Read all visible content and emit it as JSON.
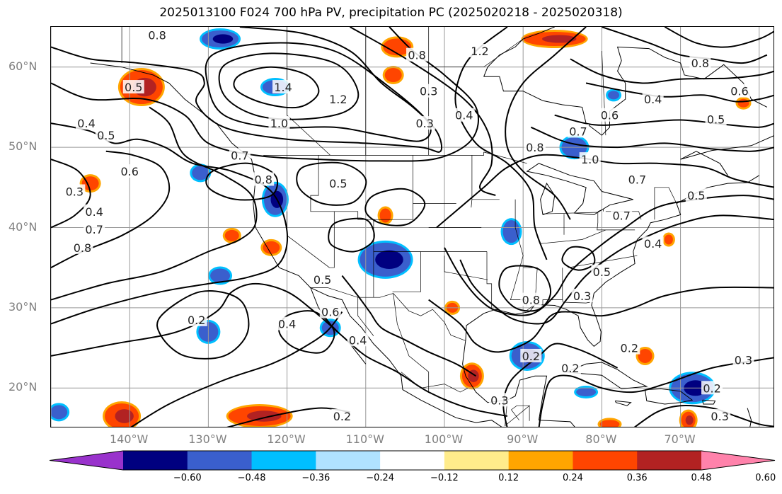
{
  "title": "2025013100 F024 700 hPa PV, precipitation PC (2025020218 - 2025020318)",
  "lat_labels": [
    {
      "text": "60°N",
      "lat": 60
    },
    {
      "text": "50°N",
      "lat": 50
    },
    {
      "text": "40°N",
      "lat": 40
    },
    {
      "text": "30°N",
      "lat": 30
    },
    {
      "text": "20°N",
      "lat": 20
    }
  ],
  "lon_labels": [
    {
      "text": "140°W",
      "lon": -140
    },
    {
      "text": "130°W",
      "lon": -130
    },
    {
      "text": "120°W",
      "lon": -120
    },
    {
      "text": "110°W",
      "lon": -110
    },
    {
      "text": "100°W",
      "lon": -100
    },
    {
      "text": "90°W",
      "lon": -90
    },
    {
      "text": "80°W",
      "lon": -80
    },
    {
      "text": "70°W",
      "lon": -70
    }
  ],
  "colorbar": {
    "tick_labels": [
      "−0.60",
      "−0.48",
      "−0.36",
      "−0.24",
      "−0.12",
      "0.12",
      "0.24",
      "0.36",
      "0.48",
      "0.60"
    ],
    "colors": [
      "#9932cc",
      "#000080",
      "#3a5fcd",
      "#00bfff",
      "#b0e2ff",
      "#ffffff",
      "#ffec8b",
      "#ffa500",
      "#ff4500",
      "#b22222",
      "#ff82ab"
    ]
  },
  "contour_labels": [
    {
      "text": "0.8",
      "lon": -136.5,
      "lat": 64.0
    },
    {
      "text": "0.5",
      "lon": -139.5,
      "lat": 57.5
    },
    {
      "text": "0.4",
      "lon": -145.5,
      "lat": 53.0
    },
    {
      "text": "0.5",
      "lon": -143.0,
      "lat": 51.5
    },
    {
      "text": "0.6",
      "lon": -140.0,
      "lat": 47.0
    },
    {
      "text": "0.3",
      "lon": -147.0,
      "lat": 44.5
    },
    {
      "text": "0.4",
      "lon": -144.5,
      "lat": 42.0
    },
    {
      "text": "0.7",
      "lon": -144.5,
      "lat": 39.8
    },
    {
      "text": "0.8",
      "lon": -146.0,
      "lat": 37.5
    },
    {
      "text": "0.7",
      "lon": -126.0,
      "lat": 49.0
    },
    {
      "text": "0.8",
      "lon": -123.0,
      "lat": 46.0
    },
    {
      "text": "1.4",
      "lon": -120.5,
      "lat": 57.5
    },
    {
      "text": "1.0",
      "lon": -121.0,
      "lat": 53.0
    },
    {
      "text": "1.2",
      "lon": -113.5,
      "lat": 56.0
    },
    {
      "text": "0.8",
      "lon": -103.5,
      "lat": 61.5
    },
    {
      "text": "1.2",
      "lon": -95.5,
      "lat": 62.0
    },
    {
      "text": "0.3",
      "lon": -102.0,
      "lat": 57.0
    },
    {
      "text": "0.4",
      "lon": -97.5,
      "lat": 54.0
    },
    {
      "text": "0.3",
      "lon": -102.5,
      "lat": 53.0
    },
    {
      "text": "0.5",
      "lon": -113.5,
      "lat": 45.5
    },
    {
      "text": "0.5",
      "lon": -115.5,
      "lat": 33.5
    },
    {
      "text": "0.6",
      "lon": -114.5,
      "lat": 29.5
    },
    {
      "text": "0.4",
      "lon": -120.0,
      "lat": 28.0
    },
    {
      "text": "0.4",
      "lon": -111.0,
      "lat": 26.0
    },
    {
      "text": "0.2",
      "lon": -131.5,
      "lat": 28.5
    },
    {
      "text": "0.2",
      "lon": -113.0,
      "lat": 16.5
    },
    {
      "text": "0.8",
      "lon": -88.5,
      "lat": 50.0
    },
    {
      "text": "0.7",
      "lon": -83.0,
      "lat": 52.0
    },
    {
      "text": "1.0",
      "lon": -81.5,
      "lat": 48.5
    },
    {
      "text": "0.6",
      "lon": -79.0,
      "lat": 54.0
    },
    {
      "text": "0.4",
      "lon": -73.5,
      "lat": 56.0
    },
    {
      "text": "0.5",
      "lon": -65.5,
      "lat": 53.5
    },
    {
      "text": "0.6",
      "lon": -62.5,
      "lat": 57.0
    },
    {
      "text": "0.8",
      "lon": -67.5,
      "lat": 60.5
    },
    {
      "text": "0.5",
      "lon": -68.0,
      "lat": 44.0
    },
    {
      "text": "0.7",
      "lon": -75.5,
      "lat": 46.0
    },
    {
      "text": "0.7",
      "lon": -77.5,
      "lat": 41.5
    },
    {
      "text": "0.4",
      "lon": -73.5,
      "lat": 38.0
    },
    {
      "text": "0.5",
      "lon": -80.0,
      "lat": 34.5
    },
    {
      "text": "0.3",
      "lon": -82.5,
      "lat": 31.5
    },
    {
      "text": "0.8",
      "lon": -89.0,
      "lat": 31.0
    },
    {
      "text": "0.2",
      "lon": -84.0,
      "lat": 22.5
    },
    {
      "text": "0.2",
      "lon": -89.0,
      "lat": 24.0
    },
    {
      "text": "0.3",
      "lon": -93.0,
      "lat": 18.5
    },
    {
      "text": "0.2",
      "lon": -76.5,
      "lat": 25.0
    },
    {
      "text": "0.3",
      "lon": -62.0,
      "lat": 23.5
    },
    {
      "text": "0.3",
      "lon": -65.0,
      "lat": 16.5
    },
    {
      "text": "0.2",
      "lon": -66.0,
      "lat": 20.0
    }
  ],
  "precip_anomalies": [
    {
      "lon": -138.5,
      "lat": 57.5,
      "rx": 30,
      "ry": 24,
      "color": "#ff4500",
      "core": "#b22222"
    },
    {
      "lon": -128.5,
      "lat": 63.5,
      "rx": 26,
      "ry": 12,
      "color": "#3a5fcd",
      "core": "#000080"
    },
    {
      "lon": -121.5,
      "lat": 57.5,
      "rx": 18,
      "ry": 10,
      "color": "#3a5fcd",
      "core": null
    },
    {
      "lon": -131.0,
      "lat": 46.8,
      "rx": 12,
      "ry": 10,
      "color": "#3a5fcd",
      "core": null
    },
    {
      "lon": -145.0,
      "lat": 45.5,
      "rx": 12,
      "ry": 10,
      "color": "#ff4500",
      "core": null
    },
    {
      "lon": -121.5,
      "lat": 43.5,
      "rx": 16,
      "ry": 22,
      "color": "#3a5fcd",
      "core": "#000080"
    },
    {
      "lon": -127.0,
      "lat": 39.0,
      "rx": 10,
      "ry": 8,
      "color": "#ff4500",
      "core": null
    },
    {
      "lon": -122.0,
      "lat": 37.5,
      "rx": 12,
      "ry": 9,
      "color": "#ff4500",
      "core": null
    },
    {
      "lon": -128.5,
      "lat": 34.0,
      "rx": 14,
      "ry": 10,
      "color": "#3a5fcd",
      "core": null
    },
    {
      "lon": -130.0,
      "lat": 27.0,
      "rx": 14,
      "ry": 14,
      "color": "#3a5fcd",
      "core": null
    },
    {
      "lon": -114.5,
      "lat": 27.5,
      "rx": 12,
      "ry": 10,
      "color": "#3a5fcd",
      "core": null
    },
    {
      "lon": -107.5,
      "lat": 36.0,
      "rx": 36,
      "ry": 24,
      "color": "#3a5fcd",
      "core": "#000080"
    },
    {
      "lon": -107.5,
      "lat": 41.5,
      "rx": 8,
      "ry": 10,
      "color": "#ff4500",
      "core": null
    },
    {
      "lon": -106.5,
      "lat": 59.0,
      "rx": 12,
      "ry": 10,
      "color": "#ff4500",
      "core": null
    },
    {
      "lon": -106.0,
      "lat": 62.5,
      "rx": 20,
      "ry": 12,
      "color": "#ff4500",
      "core": null
    },
    {
      "lon": -86.0,
      "lat": 63.5,
      "rx": 44,
      "ry": 10,
      "color": "#ff4500",
      "core": "#b22222"
    },
    {
      "lon": -91.5,
      "lat": 39.5,
      "rx": 12,
      "ry": 16,
      "color": "#3a5fcd",
      "core": null
    },
    {
      "lon": -83.5,
      "lat": 50.0,
      "rx": 18,
      "ry": 14,
      "color": "#3a5fcd",
      "core": null
    },
    {
      "lon": -89.5,
      "lat": 24.0,
      "rx": 22,
      "ry": 18,
      "color": "#3a5fcd",
      "core": "#000080"
    },
    {
      "lon": -96.5,
      "lat": 21.5,
      "rx": 14,
      "ry": 16,
      "color": "#ff4500",
      "core": "#b22222"
    },
    {
      "lon": -99.0,
      "lat": 30.0,
      "rx": 8,
      "ry": 7,
      "color": "#ff4500",
      "core": null
    },
    {
      "lon": -74.5,
      "lat": 24.0,
      "rx": 10,
      "ry": 10,
      "color": "#ff4500",
      "core": null
    },
    {
      "lon": -68.5,
      "lat": 20.0,
      "rx": 30,
      "ry": 20,
      "color": "#3a5fcd",
      "core": "#000080"
    },
    {
      "lon": -69.0,
      "lat": 16.0,
      "rx": 10,
      "ry": 12,
      "color": "#ff4500",
      "core": "#b22222"
    },
    {
      "lon": -141.0,
      "lat": 16.5,
      "rx": 24,
      "ry": 18,
      "color": "#ff4500",
      "core": "#b22222"
    },
    {
      "lon": -123.5,
      "lat": 16.5,
      "rx": 44,
      "ry": 14,
      "color": "#ff4500",
      "core": "#b22222"
    },
    {
      "lon": -149.0,
      "lat": 17.0,
      "rx": 12,
      "ry": 10,
      "color": "#3a5fcd",
      "core": null
    },
    {
      "lon": -71.5,
      "lat": 38.5,
      "rx": 6,
      "ry": 7,
      "color": "#ff4500",
      "core": null
    },
    {
      "lon": -78.5,
      "lat": 56.5,
      "rx": 8,
      "ry": 6,
      "color": "#3a5fcd",
      "core": null
    },
    {
      "lon": -62.0,
      "lat": 55.5,
      "rx": 8,
      "ry": 6,
      "color": "#ff4500",
      "core": null
    },
    {
      "lon": -82.0,
      "lat": 19.5,
      "rx": 14,
      "ry": 6,
      "color": "#3a5fcd",
      "core": null
    },
    {
      "lon": -79.0,
      "lat": 15.5,
      "rx": 14,
      "ry": 6,
      "color": "#ff4500",
      "core": null
    }
  ]
}
